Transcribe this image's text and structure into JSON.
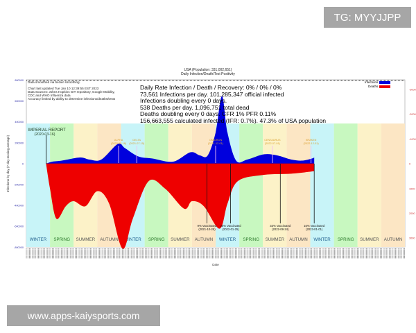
{
  "watermarks": {
    "top": "TG: MYYJJPP",
    "bottom": "www.apps-kaiysports.com"
  },
  "header": {
    "title": "USA (Population: 331,002,651)",
    "subtitle": "Daily Infection/Death/Test Positivity"
  },
  "notes": [
    "Data smoothed via bezier smoothing.",
    "Chart last updated Tue Jan 10 12:39:55 EST 2023",
    "Data Sources: Johns Hopkins GIT repository, Google Mobility,",
    "CDC and WHO Influenza data",
    "Accuracy limited by ability to determine infections/deaths/tests"
  ],
  "stats": [
    "Daily Rate Infection / Death / Recovery: 0% / 0% / 0%",
    "73,561 Infections per day.  101,285,347 official infected",
    "Infections doubling every 0 days.",
    "538 Deaths per day.  1,096,751 total dead",
    "Deaths doubling every 0 days.  CFR 1%  PFR 0.11%",
    "156,663,555 calculated infected (IFR: 0.7%).  47.3% of USA population"
  ],
  "chart_data": {
    "type": "area",
    "title": "USA (Population: 331,002,651) Daily Infection/Death/Test Positivity",
    "xlabel": "Date",
    "ylabel": "Infections by day (7 day moving average)",
    "x_units": "months since 2019-12-01",
    "xlim": [
      0,
      48
    ],
    "ylim": [
      -800000,
      800000
    ],
    "y_ticks": [
      "800000",
      "600000",
      "400000",
      "200000",
      "0",
      "-200000",
      "-400000",
      "-600000",
      "-800000"
    ],
    "y2lim": [
      -3300,
      3300
    ],
    "y2_ticks": [
      "-3000",
      "-2000",
      "-1000",
      "0",
      "1000",
      "2000",
      "3000"
    ],
    "legend": {
      "position": "top-right",
      "entries": [
        "Infections",
        "Deaths"
      ]
    },
    "colors": {
      "Infections": "#0000dd",
      "Deaths": "#ee0000"
    },
    "series": [
      {
        "name": "Infections",
        "axis": "left",
        "points": [
          [
            2.5,
            0
          ],
          [
            3.3,
            20000
          ],
          [
            4.5,
            30000
          ],
          [
            6.8,
            60000
          ],
          [
            8,
            40000
          ],
          [
            9.5,
            40000
          ],
          [
            11.6,
            190000
          ],
          [
            12.5,
            150000
          ],
          [
            14.2,
            70000
          ],
          [
            16,
            50000
          ],
          [
            18.6,
            20000
          ],
          [
            20.8,
            110000
          ],
          [
            22,
            80000
          ],
          [
            23,
            80000
          ],
          [
            24,
            300000
          ],
          [
            24.8,
            650000
          ],
          [
            25.5,
            300000
          ],
          [
            26.6,
            30000
          ],
          [
            28,
            40000
          ],
          [
            30.1,
            90000
          ],
          [
            31.8,
            80000
          ],
          [
            33.6,
            40000
          ],
          [
            35,
            30000
          ],
          [
            36.2,
            50000
          ],
          [
            36.5,
            60000
          ]
        ]
      },
      {
        "name": "Deaths",
        "axis": "right",
        "points": [
          [
            2.5,
            0
          ],
          [
            3,
            1000
          ],
          [
            3.8,
            2200
          ],
          [
            5,
            1700
          ],
          [
            6,
            1500
          ],
          [
            7.5,
            1700
          ],
          [
            9,
            1100
          ],
          [
            10.5,
            1600
          ],
          [
            12.2,
            3400
          ],
          [
            13.5,
            2200
          ],
          [
            15.5,
            700
          ],
          [
            17.6,
            1000
          ],
          [
            20,
            1800
          ],
          [
            21,
            1500
          ],
          [
            22.5,
            1700
          ],
          [
            24.5,
            2600
          ],
          [
            25.5,
            1600
          ],
          [
            26.8,
            700
          ],
          [
            30,
            450
          ],
          [
            33.6,
            400
          ],
          [
            36.5,
            300
          ]
        ]
      }
    ],
    "seasons": [
      "WINTER",
      "SPRING",
      "SUMMER",
      "AUTUMN",
      "WINTER",
      "SPRING",
      "SUMMER",
      "AUTUMN",
      "WINTER",
      "SPRING",
      "SUMMER",
      "AUTUMN",
      "WINTER",
      "SPRING",
      "SUMMER",
      "AUTUMN"
    ],
    "season_colors": {
      "WINTER": "#c8f4f8",
      "SPRING": "#c8f8c0",
      "SUMMER": "#fcf2c8",
      "AUTUMN": "#fce6c4"
    },
    "events": [
      {
        "label": "IMPERIAL REPORT",
        "date": "(2020-03-16)",
        "x": 2.5
      },
      {
        "label": "ALPHA",
        "date": "(2020-12-18)",
        "x": 11.7
      },
      {
        "label": "DELTA",
        "date": "(2021-07-15)",
        "x": 14
      },
      {
        "label": "OMICRON",
        "date": "(2021-12-01)",
        "x": 24
      },
      {
        "label": "CENTAURUS",
        "date": "(2022-07-01)",
        "x": 31.2
      },
      {
        "label": "KRAKEN",
        "date": "(2022-12-01)",
        "x": 36.1
      }
    ],
    "vaccinations": [
      {
        "label": "9% Vaccinated",
        "date": "(2021-10-25)",
        "x": 22.9
      },
      {
        "label": "25% Vaccinated",
        "date": "(2022-01-25)",
        "x": 25.9
      },
      {
        "label": "33% Vaccinated",
        "date": "(2022-08-24)",
        "x": 32.2
      },
      {
        "label": "16% Vaccinated",
        "date": "(2023-01-01)",
        "x": 36.5
      }
    ]
  }
}
